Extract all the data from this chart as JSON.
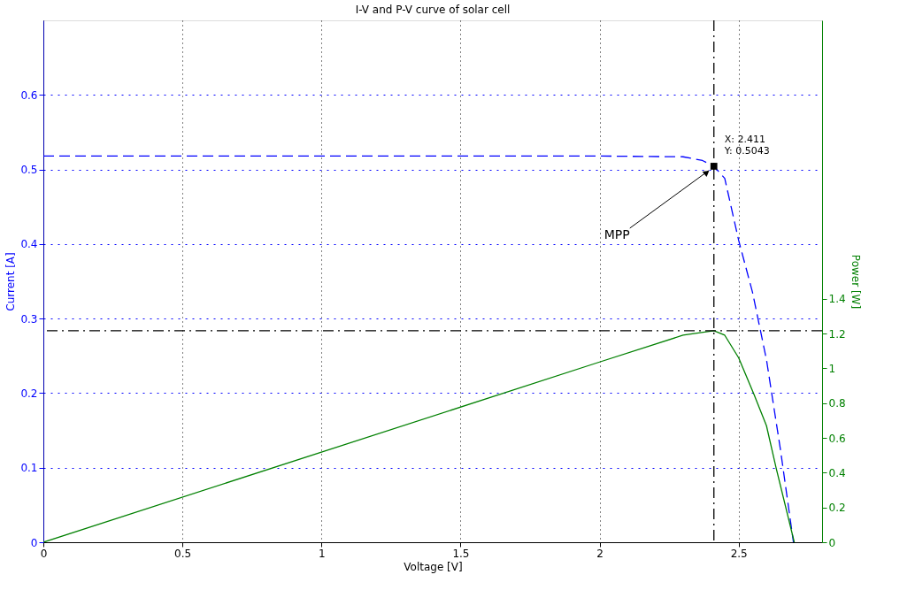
{
  "chart_data": {
    "type": "line",
    "title": "I-V and P-V curve of solar cell",
    "xlabel": "Voltage [V]",
    "ylabel": "Current [A]",
    "y2label": "Power [W]",
    "xlim": [
      0,
      2.8
    ],
    "xticks": [
      0,
      0.5,
      1,
      1.5,
      2,
      2.5
    ],
    "ylim": [
      0,
      0.7
    ],
    "yticks": [
      0,
      0.1,
      0.2,
      0.3,
      0.4,
      0.5,
      0.6
    ],
    "y2lim": [
      0,
      3
    ],
    "y2ticks": [
      0,
      0.2,
      0.4,
      0.6,
      0.8,
      1,
      1.2,
      1.4
    ],
    "grid": true,
    "series": [
      {
        "color": "#0000ff",
        "line_style": "dashed",
        "x": [
          0,
          2.0,
          2.3,
          2.37,
          2.411,
          2.45,
          2.5,
          2.55,
          2.6,
          2.65,
          2.697
        ],
        "values": [
          0.518,
          0.518,
          0.517,
          0.512,
          0.5043,
          0.488,
          0.405,
          0.335,
          0.245,
          0.125,
          0
        ]
      },
      {
        "color": "#008000",
        "line_style": "solid",
        "axis": "y2",
        "x": [
          0,
          2.0,
          2.3,
          2.411,
          2.45,
          2.5,
          2.555,
          2.6,
          2.635,
          2.7
        ],
        "values": [
          0,
          1.036,
          1.19,
          1.216,
          1.19,
          1.06,
          0.85,
          0.67,
          0.425,
          0
        ]
      }
    ],
    "ref_lines": [
      {
        "axis": "x",
        "value": 2.411,
        "color": "#000000",
        "line_style": "dashdot"
      },
      {
        "axis": "y2",
        "value": 1.216,
        "color": "#000000",
        "line_style": "dashdot"
      }
    ],
    "annotations": [
      {
        "text": "X: 2.411\nY: 0.5043",
        "x": 2.411,
        "y": 0.5043
      },
      {
        "text": "MPP",
        "x": 2.411,
        "y": 0.5043
      }
    ]
  }
}
